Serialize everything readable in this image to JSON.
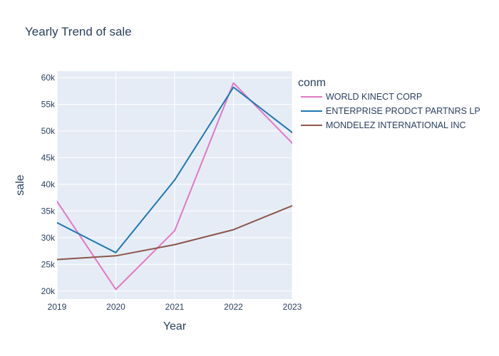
{
  "chart_data": {
    "type": "line",
    "title": "Yearly Trend of sale",
    "xlabel": "Year",
    "ylabel": "sale",
    "x": [
      2019,
      2020,
      2021,
      2022,
      2023
    ],
    "xlim": [
      2019,
      2023
    ],
    "ylim": [
      18500,
      61200
    ],
    "x_ticks": [
      "2019",
      "2020",
      "2021",
      "2022",
      "2023"
    ],
    "y_ticks": [
      {
        "value": 20000,
        "label": "20k"
      },
      {
        "value": 25000,
        "label": "25k"
      },
      {
        "value": 30000,
        "label": "30k"
      },
      {
        "value": 35000,
        "label": "35k"
      },
      {
        "value": 40000,
        "label": "40k"
      },
      {
        "value": 45000,
        "label": "45k"
      },
      {
        "value": 50000,
        "label": "50k"
      },
      {
        "value": 55000,
        "label": "55k"
      },
      {
        "value": 60000,
        "label": "60k"
      }
    ],
    "grid": true,
    "legend_title": "conm",
    "legend_position": "right",
    "plot_background": "#e5ecf6",
    "series": [
      {
        "name": "WORLD KINECT CORP",
        "color": "#e377c2",
        "values": [
          36800,
          20300,
          31300,
          59000,
          47700
        ]
      },
      {
        "name": "ENTERPRISE PRODCT PARTNRS LP",
        "color": "#1f77b4",
        "values": [
          32800,
          27200,
          40800,
          58200,
          49700
        ]
      },
      {
        "name": "MONDELEZ INTERNATIONAL INC",
        "color": "#8c564b",
        "values": [
          25900,
          26600,
          28700,
          31500,
          36000
        ]
      }
    ]
  }
}
